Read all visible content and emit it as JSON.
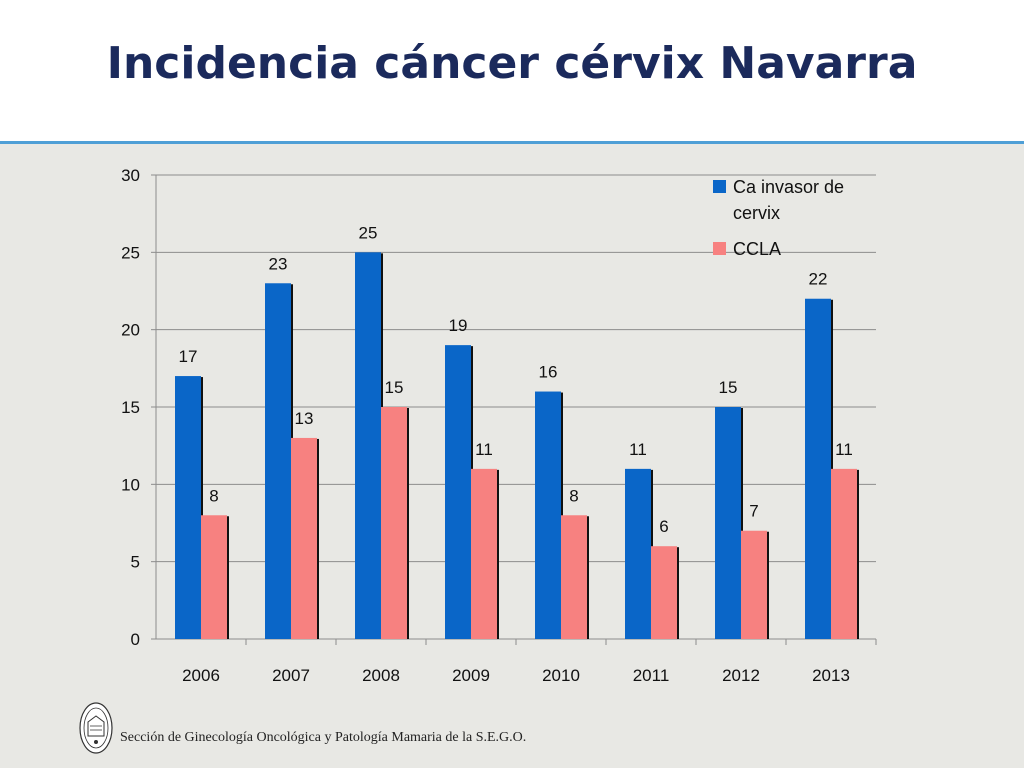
{
  "title": "Incidencia cáncer cérvix Navarra",
  "footer": {
    "text": "Sección de Ginecología Oncológica y Patología Mamaria de la S.E.G.O.",
    "seal_icon": "sego-seal-icon"
  },
  "colors": {
    "header_rule": "#4f9fd6",
    "title": "#1b2a5c",
    "series_blue": "#0a66c8",
    "series_pink": "#f78180",
    "background": "#e8e8e4"
  },
  "chart_data": {
    "type": "bar",
    "categories": [
      "2006",
      "2007",
      "2008",
      "2009",
      "2010",
      "2011",
      "2012",
      "2013"
    ],
    "series": [
      {
        "name": "Ca invasor de cervix",
        "legend_lines": [
          "Ca invasor de",
          "cervix"
        ],
        "color": "#0a66c8",
        "values": [
          17,
          23,
          25,
          19,
          16,
          11,
          15,
          22
        ]
      },
      {
        "name": "CCLA",
        "legend_lines": [
          "CCLA"
        ],
        "color": "#f78180",
        "values": [
          8,
          13,
          15,
          11,
          8,
          6,
          7,
          11
        ]
      }
    ],
    "ylim": [
      0,
      30
    ],
    "yticks": [
      0,
      5,
      10,
      15,
      20,
      25,
      30
    ],
    "grid": true,
    "legend": "top-right",
    "data_labels": true
  }
}
